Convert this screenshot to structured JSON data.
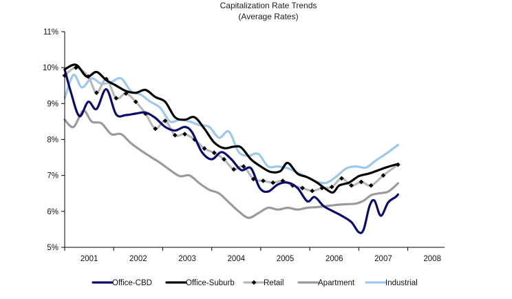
{
  "chart_data": {
    "type": "line",
    "title": "Capitalization Rate Trends",
    "subtitle": "(Average Rates)",
    "xlabel": "",
    "ylabel": "",
    "x_tick_labels": [
      "2001",
      "2002",
      "2003",
      "2004",
      "2005",
      "2006",
      "2007",
      "2008"
    ],
    "x_range": [
      2000.5,
      2008.25
    ],
    "y_tick_labels": [
      "5%",
      "6%",
      "7%",
      "8%",
      "9%",
      "10%",
      "11%"
    ],
    "y_ticks": [
      5,
      6,
      7,
      8,
      9,
      10,
      11
    ],
    "ylim": [
      5,
      11
    ],
    "grid": false,
    "legend_position": "bottom",
    "series": [
      {
        "name": "Office-CBD",
        "color": "#0a0a6e",
        "marker": "none",
        "points": [
          [
            2000.5,
            9.95
          ],
          [
            2000.63,
            9.3
          ],
          [
            2000.8,
            8.65
          ],
          [
            2000.98,
            9.05
          ],
          [
            2001.15,
            8.85
          ],
          [
            2001.35,
            9.4
          ],
          [
            2001.55,
            8.7
          ],
          [
            2001.75,
            8.68
          ],
          [
            2001.95,
            8.72
          ],
          [
            2002.15,
            8.75
          ],
          [
            2002.35,
            8.6
          ],
          [
            2002.55,
            8.35
          ],
          [
            2002.75,
            8.25
          ],
          [
            2002.95,
            8.35
          ],
          [
            2003.1,
            8.2
          ],
          [
            2003.3,
            7.65
          ],
          [
            2003.5,
            7.45
          ],
          [
            2003.7,
            7.65
          ],
          [
            2003.9,
            7.45
          ],
          [
            2004.1,
            7.15
          ],
          [
            2004.3,
            7.2
          ],
          [
            2004.48,
            6.65
          ],
          [
            2004.65,
            6.55
          ],
          [
            2004.85,
            6.75
          ],
          [
            2005.05,
            6.8
          ],
          [
            2005.25,
            6.65
          ],
          [
            2005.45,
            6.28
          ],
          [
            2005.6,
            6.4
          ],
          [
            2005.78,
            6.15
          ],
          [
            2005.98,
            6.0
          ],
          [
            2006.15,
            5.88
          ],
          [
            2006.35,
            5.7
          ],
          [
            2006.5,
            5.42
          ],
          [
            2006.6,
            5.5
          ],
          [
            2006.72,
            6.15
          ],
          [
            2006.82,
            6.3
          ],
          [
            2006.95,
            5.88
          ],
          [
            2007.1,
            6.25
          ],
          [
            2007.25,
            6.4
          ],
          [
            2007.3,
            6.47
          ]
        ]
      },
      {
        "name": "Office-Suburb",
        "color": "#000000",
        "marker": "none",
        "points": [
          [
            2000.5,
            9.95
          ],
          [
            2000.73,
            10.08
          ],
          [
            2000.95,
            9.75
          ],
          [
            2001.15,
            9.88
          ],
          [
            2001.35,
            9.65
          ],
          [
            2001.55,
            9.5
          ],
          [
            2001.75,
            9.35
          ],
          [
            2001.95,
            9.3
          ],
          [
            2002.15,
            9.38
          ],
          [
            2002.35,
            9.18
          ],
          [
            2002.55,
            9.05
          ],
          [
            2002.75,
            8.62
          ],
          [
            2002.95,
            8.55
          ],
          [
            2003.15,
            8.62
          ],
          [
            2003.35,
            8.3
          ],
          [
            2003.55,
            7.92
          ],
          [
            2003.75,
            7.76
          ],
          [
            2003.95,
            7.8
          ],
          [
            2004.1,
            7.78
          ],
          [
            2004.3,
            7.45
          ],
          [
            2004.5,
            7.25
          ],
          [
            2004.7,
            7.1
          ],
          [
            2004.9,
            7.12
          ],
          [
            2005.05,
            7.35
          ],
          [
            2005.25,
            7.05
          ],
          [
            2005.45,
            6.95
          ],
          [
            2005.65,
            6.8
          ],
          [
            2005.85,
            6.6
          ],
          [
            2005.98,
            6.53
          ],
          [
            2006.1,
            6.72
          ],
          [
            2006.3,
            6.8
          ],
          [
            2006.5,
            6.98
          ],
          [
            2006.7,
            7.05
          ],
          [
            2006.85,
            7.12
          ],
          [
            2007.05,
            7.22
          ],
          [
            2007.3,
            7.32
          ]
        ]
      },
      {
        "name": "Retail",
        "color": "#b8b8b8",
        "marker": "diamond",
        "marker_color": "#000000",
        "points": [
          [
            2000.5,
            9.78
          ],
          [
            2000.73,
            10.0
          ],
          [
            2000.98,
            9.75
          ],
          [
            2001.15,
            9.3
          ],
          [
            2001.35,
            9.68
          ],
          [
            2001.55,
            9.15
          ],
          [
            2001.75,
            9.28
          ],
          [
            2001.95,
            9.05
          ],
          [
            2002.15,
            8.72
          ],
          [
            2002.35,
            8.3
          ],
          [
            2002.55,
            8.52
          ],
          [
            2002.75,
            8.12
          ],
          [
            2002.95,
            8.15
          ],
          [
            2003.15,
            8.0
          ],
          [
            2003.35,
            7.75
          ],
          [
            2003.55,
            7.63
          ],
          [
            2003.75,
            7.45
          ],
          [
            2003.95,
            7.17
          ],
          [
            2004.15,
            7.25
          ],
          [
            2004.35,
            6.9
          ],
          [
            2004.55,
            6.85
          ],
          [
            2004.75,
            6.8
          ],
          [
            2004.95,
            6.85
          ],
          [
            2005.15,
            6.72
          ],
          [
            2005.35,
            6.65
          ],
          [
            2005.55,
            6.57
          ],
          [
            2005.75,
            6.65
          ],
          [
            2005.95,
            6.68
          ],
          [
            2006.15,
            6.92
          ],
          [
            2006.35,
            6.72
          ],
          [
            2006.55,
            6.82
          ],
          [
            2006.75,
            6.72
          ],
          [
            2007.0,
            7.0
          ],
          [
            2007.3,
            7.3
          ]
        ]
      },
      {
        "name": "Apartment",
        "color": "#9a9a9a",
        "marker": "none",
        "points": [
          [
            2000.5,
            8.55
          ],
          [
            2000.68,
            8.35
          ],
          [
            2000.88,
            8.8
          ],
          [
            2001.05,
            8.5
          ],
          [
            2001.25,
            8.45
          ],
          [
            2001.45,
            8.15
          ],
          [
            2001.65,
            8.15
          ],
          [
            2001.85,
            7.9
          ],
          [
            2002.05,
            7.7
          ],
          [
            2002.25,
            7.52
          ],
          [
            2002.45,
            7.35
          ],
          [
            2002.65,
            7.15
          ],
          [
            2002.85,
            6.98
          ],
          [
            2003.05,
            7.0
          ],
          [
            2003.25,
            6.78
          ],
          [
            2003.45,
            6.6
          ],
          [
            2003.65,
            6.5
          ],
          [
            2003.85,
            6.25
          ],
          [
            2004.05,
            6.0
          ],
          [
            2004.25,
            5.82
          ],
          [
            2004.45,
            5.95
          ],
          [
            2004.65,
            6.1
          ],
          [
            2004.85,
            6.05
          ],
          [
            2005.05,
            6.1
          ],
          [
            2005.25,
            6.05
          ],
          [
            2005.45,
            6.1
          ],
          [
            2005.65,
            6.12
          ],
          [
            2005.85,
            6.15
          ],
          [
            2006.05,
            6.18
          ],
          [
            2006.25,
            6.2
          ],
          [
            2006.45,
            6.22
          ],
          [
            2006.6,
            6.3
          ],
          [
            2006.75,
            6.45
          ],
          [
            2006.9,
            6.5
          ],
          [
            2007.1,
            6.55
          ],
          [
            2007.3,
            6.78
          ]
        ]
      },
      {
        "name": "Industrial",
        "color": "#9cc8ec",
        "marker": "none",
        "points": [
          [
            2000.5,
            9.15
          ],
          [
            2000.68,
            9.8
          ],
          [
            2000.85,
            9.45
          ],
          [
            2001.05,
            9.7
          ],
          [
            2001.25,
            9.55
          ],
          [
            2001.45,
            9.6
          ],
          [
            2001.65,
            9.7
          ],
          [
            2001.85,
            9.35
          ],
          [
            2002.05,
            9.25
          ],
          [
            2002.25,
            9.05
          ],
          [
            2002.45,
            8.88
          ],
          [
            2002.65,
            8.5
          ],
          [
            2002.85,
            8.55
          ],
          [
            2003.05,
            8.5
          ],
          [
            2003.25,
            8.4
          ],
          [
            2003.45,
            8.35
          ],
          [
            2003.65,
            8.05
          ],
          [
            2003.85,
            8.22
          ],
          [
            2004.05,
            7.65
          ],
          [
            2004.25,
            7.55
          ],
          [
            2004.45,
            7.6
          ],
          [
            2004.65,
            7.25
          ],
          [
            2004.85,
            7.25
          ],
          [
            2005.05,
            7.2
          ],
          [
            2005.25,
            7.08
          ],
          [
            2005.45,
            6.95
          ],
          [
            2005.65,
            6.82
          ],
          [
            2005.85,
            6.8
          ],
          [
            2006.05,
            6.98
          ],
          [
            2006.25,
            7.2
          ],
          [
            2006.45,
            7.25
          ],
          [
            2006.65,
            7.22
          ],
          [
            2006.85,
            7.42
          ],
          [
            2007.05,
            7.6
          ],
          [
            2007.3,
            7.85
          ]
        ]
      }
    ]
  }
}
